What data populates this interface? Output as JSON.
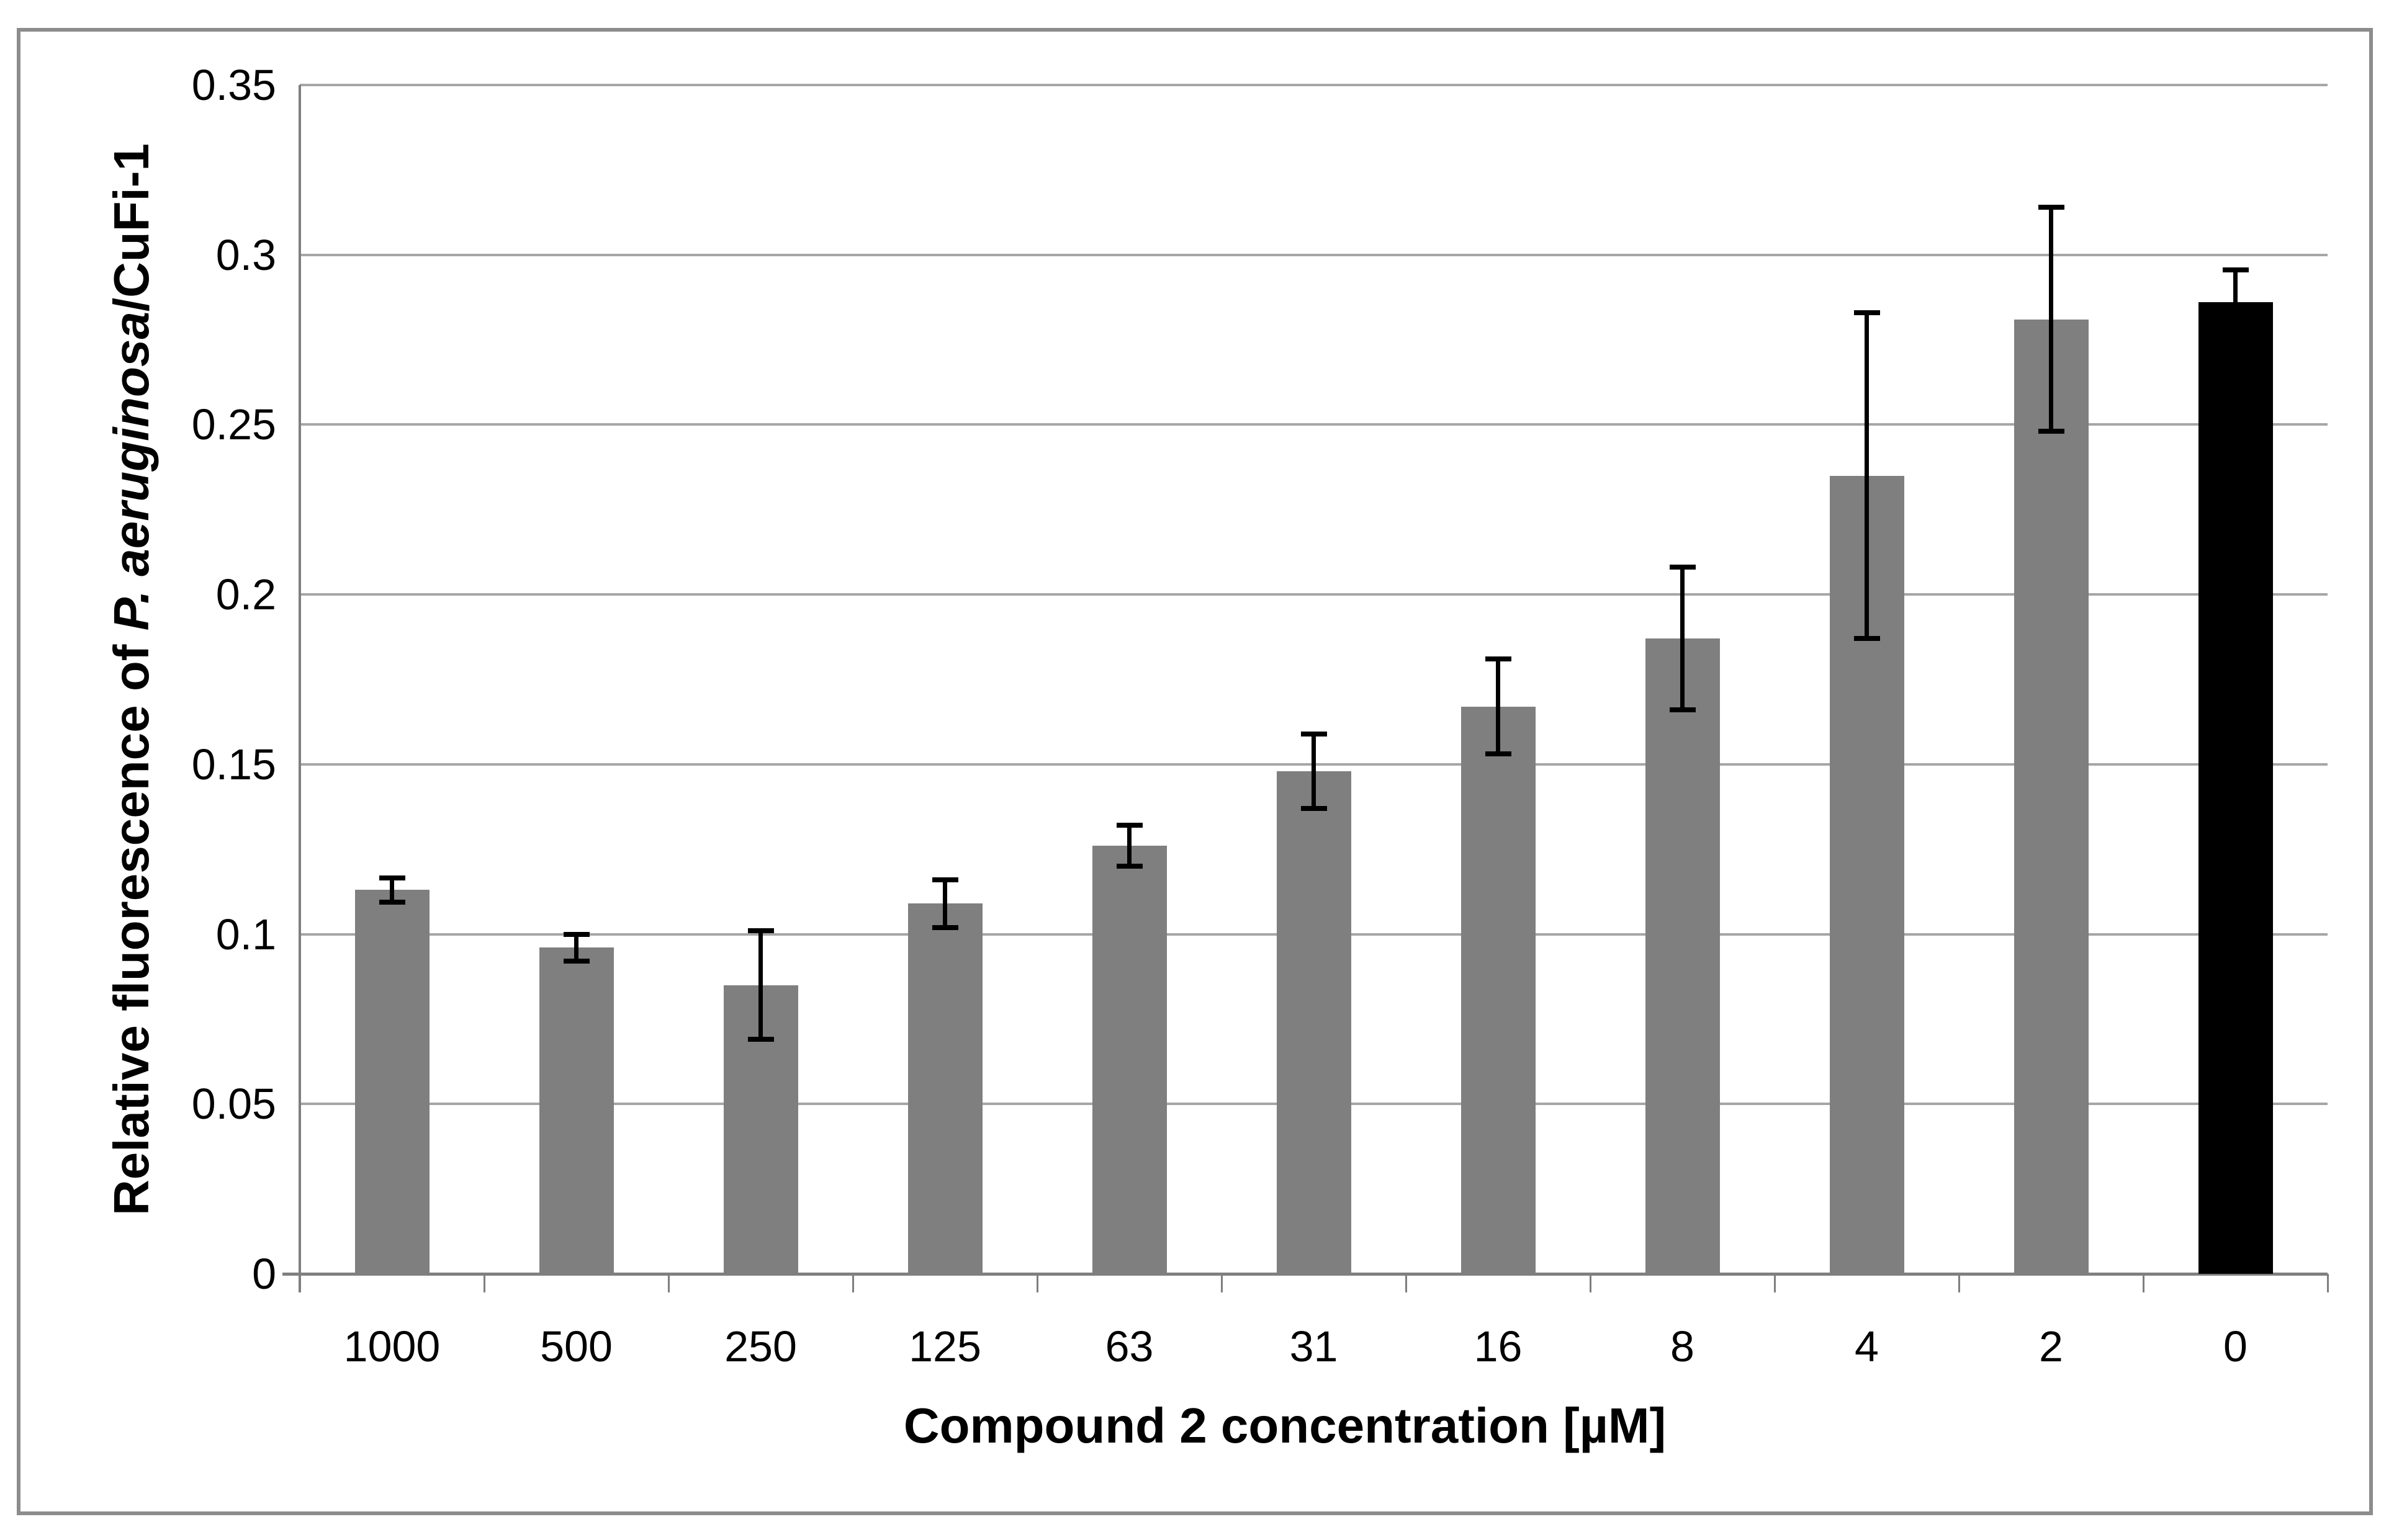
{
  "chart_data": {
    "type": "bar",
    "title": "",
    "categories": [
      "1000",
      "500",
      "250",
      "125",
      "63",
      "31",
      "16",
      "8",
      "4",
      "2",
      "0"
    ],
    "values": [
      0.113,
      0.096,
      0.085,
      0.109,
      0.126,
      0.148,
      0.167,
      0.187,
      0.235,
      0.281,
      0.286
    ],
    "error_bars": [
      0.0035,
      0.004,
      0.016,
      0.007,
      0.006,
      0.011,
      0.014,
      0.021,
      0.048,
      0.033,
      0.0095
    ],
    "xlabel": "Compound 2 concentration [µM]",
    "ylabel_parts": [
      {
        "text": "Relative fluorescence of ",
        "italic": false
      },
      {
        "text": "P. aeruginosa",
        "italic": true
      },
      {
        "text": "/CuFi-1",
        "italic": false
      }
    ],
    "ylim": [
      0,
      0.35
    ],
    "ytick_step": 0.05,
    "ytick_labels": [
      "0",
      "0.05",
      "0.1",
      "0.15",
      "0.2",
      "0.25",
      "0.3",
      "0.35"
    ],
    "grid": true,
    "legend": "none",
    "colors": {
      "bar_default": "#7f7f7f",
      "bar_highlight": "#000000",
      "highlight_index": 10,
      "gridline": "#a6a6a6",
      "axis": "#7f7f7f",
      "frame_border": "#8c8c8c",
      "error_bar": "#000000",
      "background": "#ffffff"
    }
  }
}
